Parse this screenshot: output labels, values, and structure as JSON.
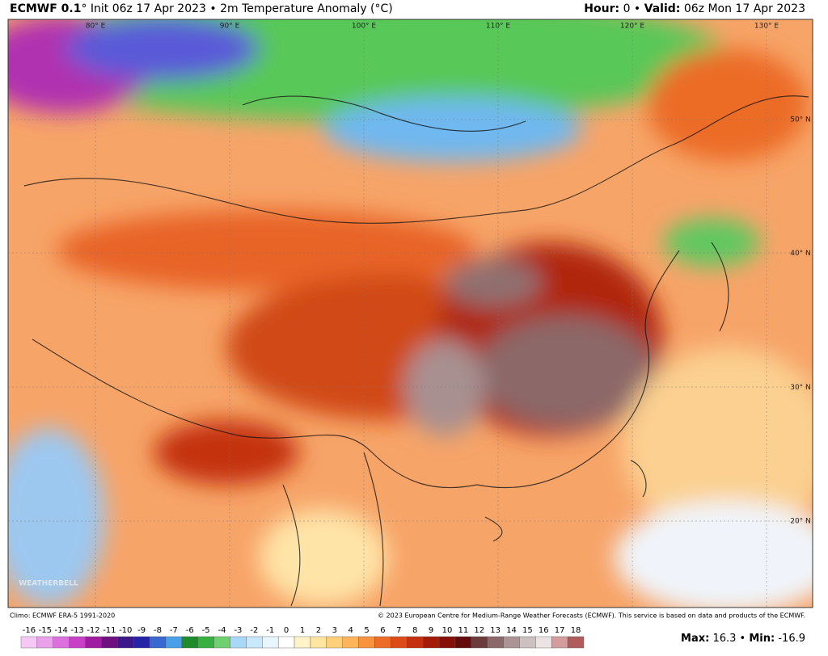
{
  "header": {
    "title_bold": "ECMWF 0.1",
    "title_rest": "° Init 06z 17 Apr 2023 • 2m Temperature Anomaly (°C)",
    "hour_label": "Hour:",
    "hour": "0",
    "valid_label": "Valid:",
    "valid": "06z Mon 17 Apr 2023"
  },
  "map": {
    "longitude_labels": [
      "80° E",
      "90° E",
      "100° E",
      "110° E",
      "120° E",
      "130° E"
    ],
    "latitude_labels": [
      "50° N",
      "40° N",
      "30° N",
      "20° N"
    ],
    "watermark": "WEATHERBELL"
  },
  "footer": {
    "climo": "Climo: ECMWF ERA-5 1991-2020",
    "copyright": "© 2023 European Centre for Medium-Range Weather Forecasts (ECMWF). This service is based on data and products of the ECMWF.",
    "colorbar": {
      "ticks": [
        -16,
        -15,
        -14,
        -13,
        -12,
        -11,
        -10,
        -9,
        -8,
        -7,
        -6,
        -5,
        -4,
        -3,
        -2,
        -1,
        0,
        1,
        2,
        3,
        4,
        5,
        6,
        7,
        8,
        9,
        10,
        11,
        12,
        13,
        14,
        15,
        16,
        17,
        18
      ],
      "colors": [
        "#f5c8f5",
        "#eaa0ea",
        "#dc70dc",
        "#c840c8",
        "#a01ca0",
        "#6e1080",
        "#3c1888",
        "#2424a8",
        "#3868d0",
        "#4aa0e8",
        "#1e8c2a",
        "#38b040",
        "#70d070",
        "#a8d8f8",
        "#c8e8fc",
        "#e8f6fe",
        "#ffffff",
        "#fff4c8",
        "#ffe6a0",
        "#ffd07c",
        "#ffb45c",
        "#f8923e",
        "#ec6c28",
        "#dc4c18",
        "#c43010",
        "#a41c08",
        "#841008",
        "#640c0c",
        "#6c3c3c",
        "#8c6868",
        "#ac9494",
        "#ccc0c0",
        "#ece4e4",
        "#d49c9c",
        "#b05c5c"
      ]
    },
    "max_label": "Max:",
    "max": 16.3,
    "min_label": "Min:",
    "min": -16.9
  }
}
